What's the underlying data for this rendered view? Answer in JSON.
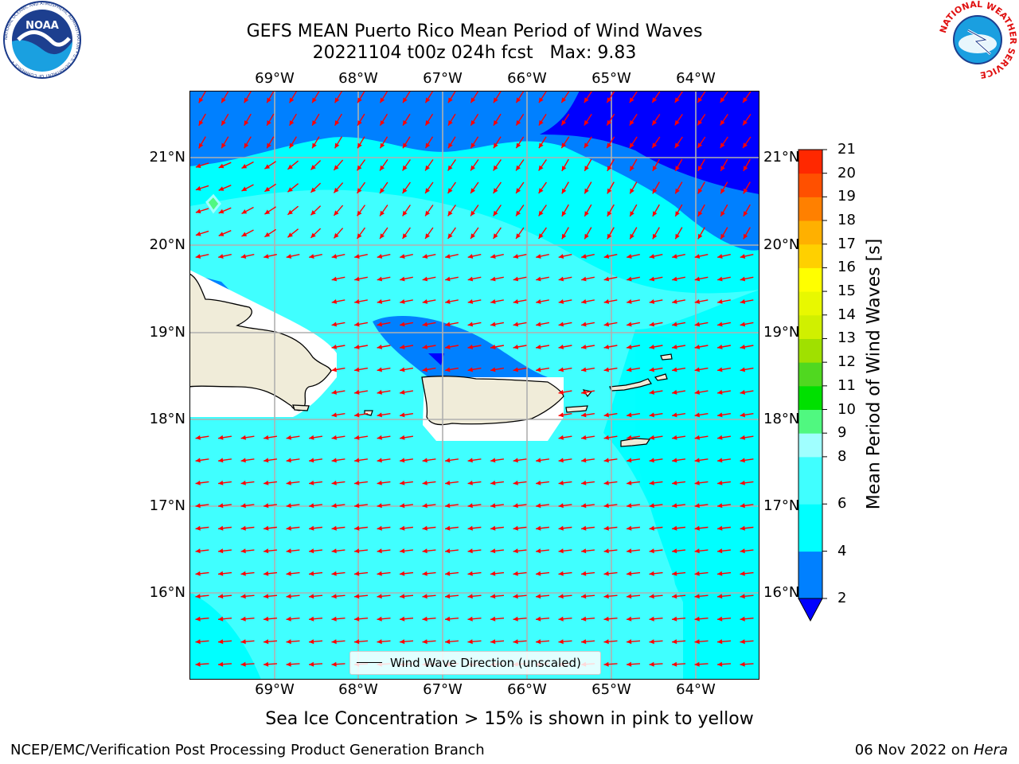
{
  "header": {
    "title_line1": "GEFS MEAN Puerto Rico Mean Period of Wind Waves",
    "title_line2": "20221104 t00z 024h fcst   Max: 9.83"
  },
  "map": {
    "lon_ticks": [
      "69°W",
      "68°W",
      "67°W",
      "66°W",
      "65°W",
      "64°W"
    ],
    "lat_ticks": [
      "21°N",
      "20°N",
      "19°N",
      "18°N",
      "17°N",
      "16°N"
    ],
    "legend_label": "Wind Wave Direction (unscaled)",
    "arrow_color": "#ff0000",
    "land_color": "#f0ecd9",
    "field_colors": {
      "2-4": "#0080ff",
      "4-6": "#00ffff",
      "6-8": "#40ffff",
      "below-2": "#0000ff",
      "no-data": "#ffffff"
    }
  },
  "colorbar": {
    "label": "Mean Period of Wind Waves [s]",
    "levels": [
      2,
      3,
      4,
      5,
      6,
      7,
      8,
      9,
      10,
      11,
      12,
      13,
      14,
      15,
      16,
      17,
      18,
      19,
      20,
      21
    ],
    "tick_labels": [
      "21",
      "20",
      "19",
      "18",
      "17",
      "16",
      "15",
      "14",
      "13",
      "12",
      "11",
      "10",
      "9",
      "8",
      "6",
      "4",
      "2"
    ],
    "tick_values": [
      21,
      20,
      19,
      18,
      17,
      16,
      15,
      14,
      13,
      12,
      11,
      10,
      9,
      8,
      6,
      4,
      2
    ],
    "colors": [
      "#0080ff",
      "#0080ff",
      "#00ffff",
      "#00ffff",
      "#40ffff",
      "#40ffff",
      "#a0ffff",
      "#50f880",
      "#00e000",
      "#50d820",
      "#a0e000",
      "#d0f000",
      "#e8f800",
      "#ffff00",
      "#ffd000",
      "#ffb000",
      "#ff8000",
      "#ff5000",
      "#ff2800",
      "#ff0000"
    ],
    "under_color": "#0000ff"
  },
  "footer": {
    "ice_note": "Sea Ice Concentration > 15% is shown in pink to yellow",
    "left": "NCEP/EMC/Verification Post Processing Product Generation Branch",
    "date": "06 Nov 2022 on ",
    "machine": "Hera"
  },
  "logos": {
    "noaa": "NOAA",
    "noaa_ring": "NATIONAL OCEANIC AND ATMOSPHERIC ADMINISTRATION • U.S. DEPARTMENT OF COMMERCE •",
    "nws_ring": "NATIONAL WEATHER SERVICE"
  }
}
